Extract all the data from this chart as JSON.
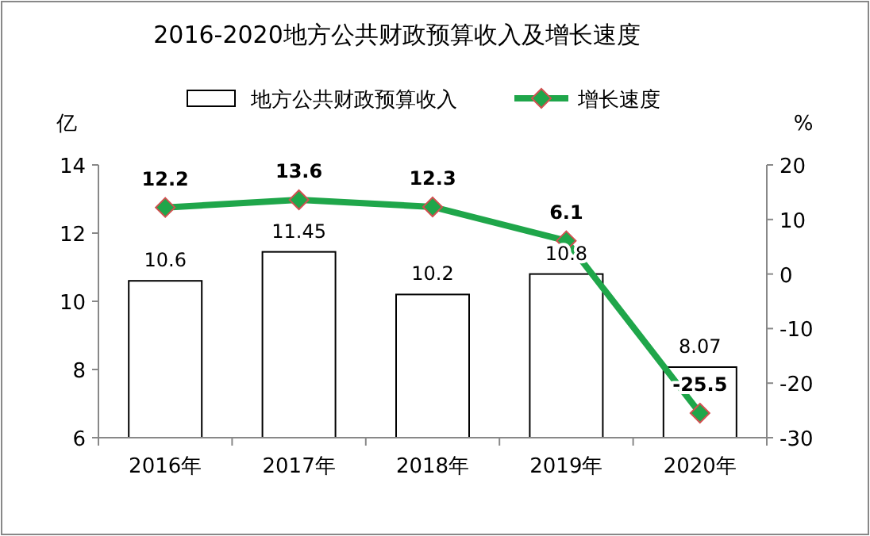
{
  "chart_data": {
    "type": "bar",
    "title": "2016-2020地方公共财政预算收入及增长速度",
    "categories": [
      "2016年",
      "2017年",
      "2018年",
      "2019年",
      "2020年"
    ],
    "series": [
      {
        "name": "地方公共财政预算收入",
        "color": "#ffffff",
        "values": [
          10.6,
          11.45,
          10.2,
          10.8,
          8.07
        ]
      },
      {
        "name": "增长速度",
        "type": "line",
        "axis": "y2",
        "color": "#1fa64a",
        "marker": "diamond",
        "values": [
          12.2,
          13.6,
          12.3,
          6.1,
          -25.5
        ]
      }
    ],
    "ylabel": "亿",
    "y2label": "%",
    "ylim": [
      6,
      14
    ],
    "yticks": [
      6,
      8,
      10,
      12,
      14
    ],
    "y2lim": [
      -30,
      20
    ],
    "y2ticks": [
      -30,
      -20,
      -10,
      0,
      10,
      20
    ],
    "data_labels": true,
    "legend": "top",
    "grid": false
  }
}
